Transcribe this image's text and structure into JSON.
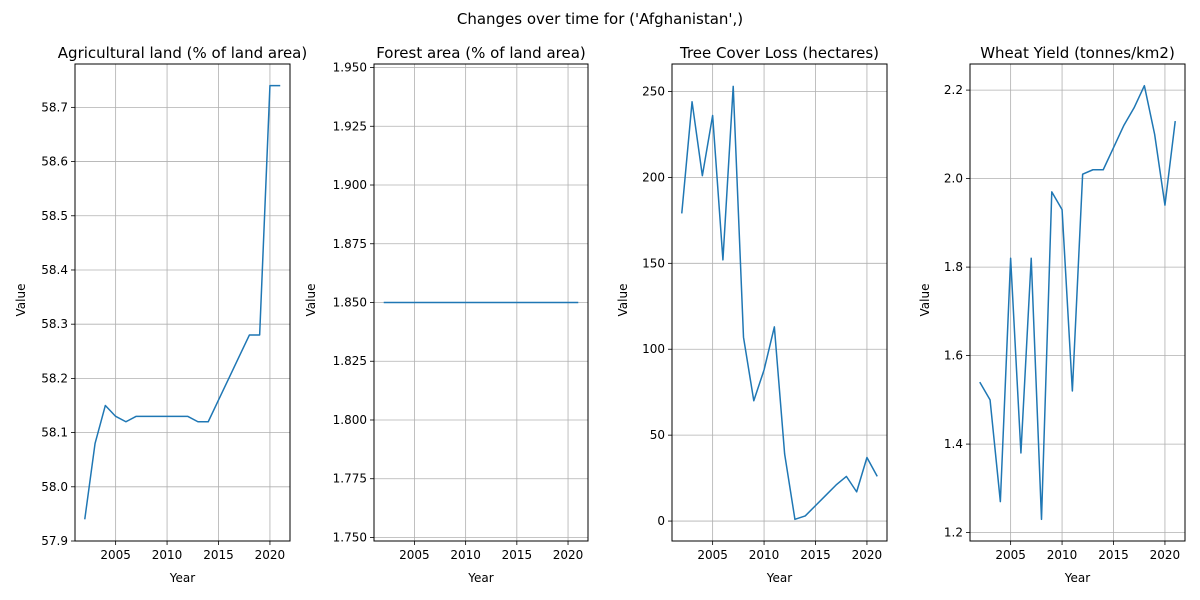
{
  "figure": {
    "suptitle": "Changes over time for ('Afghanistan',)"
  },
  "colors": {
    "line": "#1f77b4",
    "grid": "#b0b0b0",
    "axis": "#000000"
  },
  "chart_data": [
    {
      "type": "line",
      "title": "Agricultural land (% of land area)",
      "xlabel": "Year",
      "ylabel": "Value",
      "xlim": [
        2001.05,
        2021.95
      ],
      "ylim": [
        57.9,
        58.78
      ],
      "xticks": [
        2005,
        2010,
        2015,
        2020
      ],
      "yticks": [
        57.9,
        58.0,
        58.1,
        58.2,
        58.3,
        58.4,
        58.5,
        58.6,
        58.7
      ],
      "ytick_labels": [
        "57.9",
        "58.0",
        "58.1",
        "58.2",
        "58.3",
        "58.4",
        "58.5",
        "58.6",
        "58.7"
      ],
      "grid": true,
      "series": [
        {
          "x": [
            2002,
            2003,
            2004,
            2005,
            2006,
            2007,
            2008,
            2009,
            2010,
            2011,
            2012,
            2013,
            2014,
            2015,
            2016,
            2017,
            2018,
            2019,
            2020,
            2021
          ],
          "values": [
            57.94,
            58.08,
            58.15,
            58.13,
            58.12,
            58.13,
            58.13,
            58.13,
            58.13,
            58.13,
            58.13,
            58.12,
            58.12,
            58.16,
            58.2,
            58.24,
            58.28,
            58.28,
            58.74,
            58.74
          ]
        }
      ]
    },
    {
      "type": "line",
      "title": "Forest area (% of land area)",
      "xlabel": "Year",
      "ylabel": "Value",
      "xlim": [
        2001.05,
        2021.95
      ],
      "ylim": [
        1.7485,
        1.9515
      ],
      "xticks": [
        2005,
        2010,
        2015,
        2020
      ],
      "yticks": [
        1.75,
        1.775,
        1.8,
        1.825,
        1.85,
        1.875,
        1.9,
        1.925,
        1.95
      ],
      "ytick_labels": [
        "1.750",
        "1.775",
        "1.800",
        "1.825",
        "1.850",
        "1.875",
        "1.900",
        "1.925",
        "1.950"
      ],
      "grid": true,
      "series": [
        {
          "x": [
            2002,
            2003,
            2004,
            2005,
            2006,
            2007,
            2008,
            2009,
            2010,
            2011,
            2012,
            2013,
            2014,
            2015,
            2016,
            2017,
            2018,
            2019,
            2020,
            2021
          ],
          "values": [
            1.85,
            1.85,
            1.85,
            1.85,
            1.85,
            1.85,
            1.85,
            1.85,
            1.85,
            1.85,
            1.85,
            1.85,
            1.85,
            1.85,
            1.85,
            1.85,
            1.85,
            1.85,
            1.85,
            1.85
          ]
        }
      ]
    },
    {
      "type": "line",
      "title": "Tree Cover Loss (hectares)",
      "xlabel": "Year",
      "ylabel": "Value",
      "xlim": [
        2001.05,
        2021.95
      ],
      "ylim": [
        -11.6,
        266
      ],
      "xticks": [
        2005,
        2010,
        2015,
        2020
      ],
      "yticks": [
        0,
        50,
        100,
        150,
        200,
        250
      ],
      "ytick_labels": [
        "0",
        "50",
        "100",
        "150",
        "200",
        "250"
      ],
      "grid": true,
      "series": [
        {
          "x": [
            2002,
            2003,
            2004,
            2005,
            2006,
            2007,
            2008,
            2009,
            2010,
            2011,
            2012,
            2013,
            2014,
            2015,
            2016,
            2017,
            2018,
            2019,
            2020,
            2021
          ],
          "values": [
            179,
            244,
            201,
            236,
            152,
            253,
            107,
            70,
            88,
            113,
            39,
            1,
            3,
            9,
            15,
            21,
            26,
            17,
            37,
            26
          ]
        }
      ]
    },
    {
      "type": "line",
      "title": "Wheat Yield (tonnes/km2)",
      "xlabel": "Year",
      "ylabel": "Value",
      "xlim": [
        2001.05,
        2021.95
      ],
      "ylim": [
        1.181,
        2.259
      ],
      "xticks": [
        2005,
        2010,
        2015,
        2020
      ],
      "yticks": [
        1.2,
        1.4,
        1.6,
        1.8,
        2.0,
        2.2
      ],
      "ytick_labels": [
        "1.2",
        "1.4",
        "1.6",
        "1.8",
        "2.0",
        "2.2"
      ],
      "grid": true,
      "series": [
        {
          "x": [
            2002,
            2003,
            2004,
            2005,
            2006,
            2007,
            2008,
            2009,
            2010,
            2011,
            2012,
            2013,
            2014,
            2015,
            2016,
            2017,
            2018,
            2019,
            2020,
            2021
          ],
          "values": [
            1.54,
            1.5,
            1.27,
            1.82,
            1.38,
            1.82,
            1.23,
            1.97,
            1.93,
            1.52,
            2.01,
            2.02,
            2.02,
            2.07,
            2.12,
            2.16,
            2.21,
            2.1,
            1.94,
            2.13
          ]
        }
      ]
    }
  ]
}
